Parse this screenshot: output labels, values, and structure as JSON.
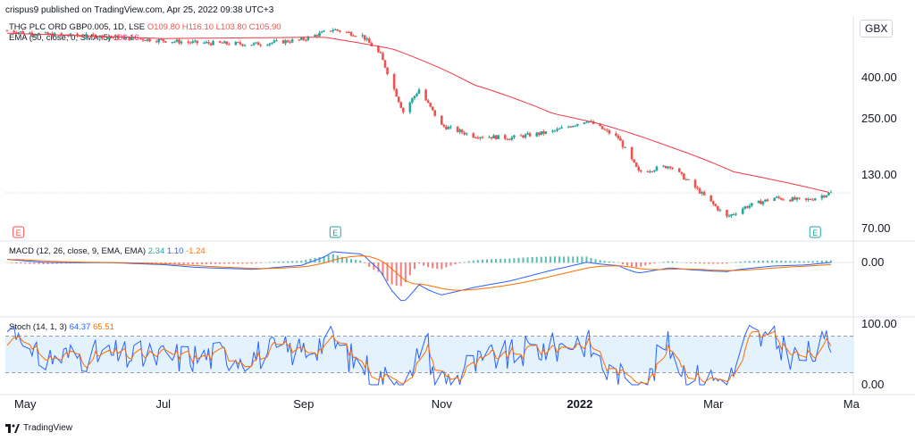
{
  "header": {
    "publisher": "crispus9 published on TradingView.com, Apr 25, 2022 09:38 UTC+3"
  },
  "legend": {
    "symbol": "THG PLC ORD GBP0.005, 1D, LSE",
    "o": "O109.80",
    "h": "H116.10",
    "l": "L103.80",
    "c": "C105.90",
    "ema_label": "EMA (50, close, 0, SMA, 5)",
    "ema_value": "106.16",
    "macd_label": "MACD (12, 26, close, 9, EMA, EMA)",
    "macd_v1": "2.34",
    "macd_v2": "1.10",
    "macd_v3": "-1.24",
    "stoch_label": "Stoch (14, 1, 3)",
    "stoch_v1": "64.37",
    "stoch_v2": "65.51"
  },
  "currency_button": "GBX",
  "footer": {
    "brand": "TradingView"
  },
  "colors": {
    "up": "#26a69a",
    "down": "#ef5350",
    "ema": "#f23645",
    "macd": "#2962ff",
    "signal": "#ff6d00",
    "stoch_k": "#2962ff",
    "stoch_d": "#ff6d00",
    "band": "#e3f2fd"
  },
  "chart_data": {
    "type": "candlestick",
    "price_axis": {
      "scale": "log",
      "ticks": [
        "400.00",
        "250.00",
        "130.00",
        "70.00"
      ],
      "tick_values": [
        400,
        250,
        130,
        70
      ]
    },
    "x_labels": [
      "May",
      "Jul",
      "Sep",
      "Nov",
      "2022",
      "Mar",
      "Ma"
    ],
    "earnings_markers": [
      "E",
      "E",
      "E"
    ],
    "price_series": {
      "name": "THG PLC ORD GBP0.005",
      "approx_close": [
        {
          "date": "2021-04-23",
          "close": 690
        },
        {
          "date": "2021-05-10",
          "close": 660
        },
        {
          "date": "2021-06-10",
          "close": 640
        },
        {
          "date": "2021-07-15",
          "close": 600
        },
        {
          "date": "2021-08-10",
          "close": 590
        },
        {
          "date": "2021-08-31",
          "close": 620
        },
        {
          "date": "2021-09-14",
          "close": 700
        },
        {
          "date": "2021-09-27",
          "close": 650
        },
        {
          "date": "2021-10-05",
          "close": 520
        },
        {
          "date": "2021-10-15",
          "close": 270
        },
        {
          "date": "2021-10-22",
          "close": 350
        },
        {
          "date": "2021-11-01",
          "close": 230
        },
        {
          "date": "2021-11-15",
          "close": 205
        },
        {
          "date": "2021-12-01",
          "close": 200
        },
        {
          "date": "2021-12-20",
          "close": 215
        },
        {
          "date": "2022-01-04",
          "close": 245
        },
        {
          "date": "2022-01-18",
          "close": 200
        },
        {
          "date": "2022-01-27",
          "close": 135
        },
        {
          "date": "2022-02-10",
          "close": 145
        },
        {
          "date": "2022-02-22",
          "close": 110
        },
        {
          "date": "2022-03-07",
          "close": 80
        },
        {
          "date": "2022-03-15",
          "close": 90
        },
        {
          "date": "2022-03-28",
          "close": 100
        },
        {
          "date": "2022-04-11",
          "close": 97
        },
        {
          "date": "2022-04-22",
          "close": 106
        }
      ]
    },
    "ema_series": {
      "name": "EMA (50, close, 0, SMA, 5)",
      "approx": [
        {
          "date": "2021-04-23",
          "value": 670
        },
        {
          "date": "2021-07-01",
          "value": 630
        },
        {
          "date": "2021-09-10",
          "value": 640
        },
        {
          "date": "2021-10-10",
          "value": 560
        },
        {
          "date": "2021-11-15",
          "value": 370
        },
        {
          "date": "2021-12-20",
          "value": 265
        },
        {
          "date": "2022-01-10",
          "value": 235
        },
        {
          "date": "2022-02-10",
          "value": 180
        },
        {
          "date": "2022-03-10",
          "value": 135
        },
        {
          "date": "2022-04-22",
          "value": 106
        }
      ]
    },
    "macd_axis": {
      "ticks": [
        "0.00"
      ]
    },
    "stoch_axis": {
      "ticks": [
        "100.00",
        "0.00"
      ],
      "band": [
        20,
        80
      ]
    }
  }
}
